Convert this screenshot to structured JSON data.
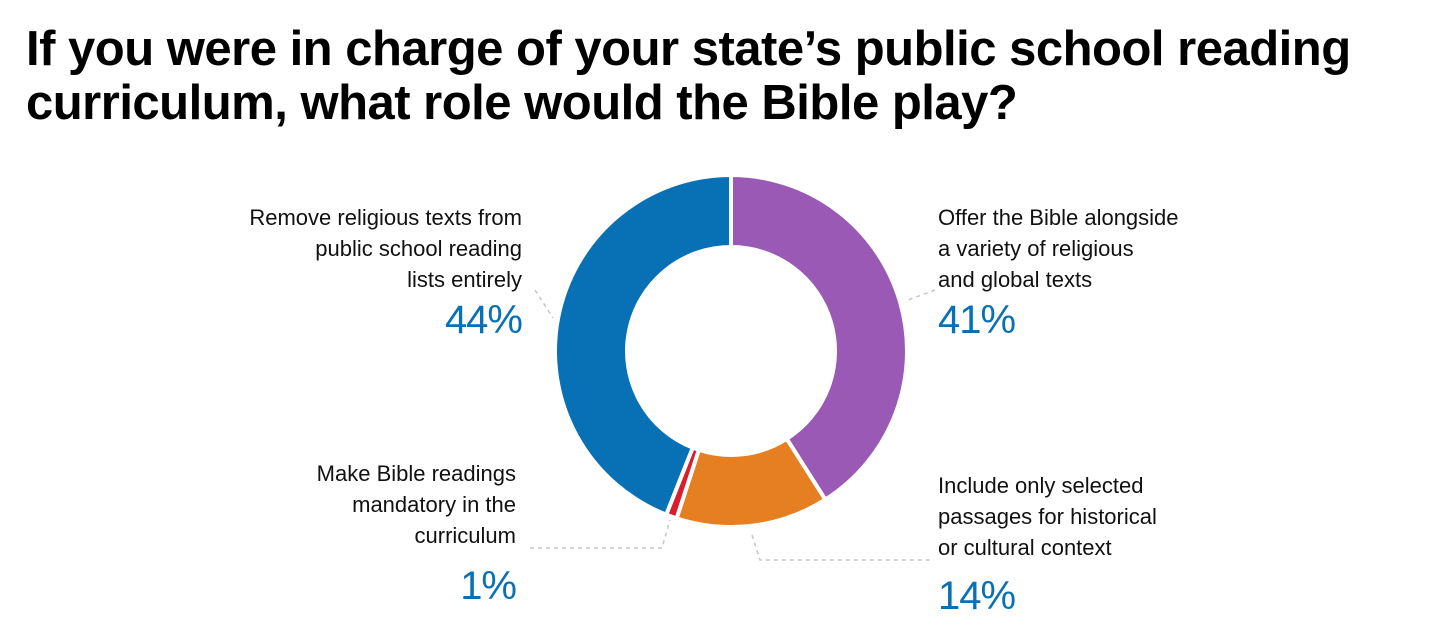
{
  "title": "If you were in charge of your state’s public school reading curriculum, what role would the Bible play?",
  "chart_data": {
    "type": "pie",
    "title": "If you were in charge of your state’s public school reading curriculum, what role would the Bible play?",
    "categories": [
      "Offer the Bible alongside a variety of religious and global texts",
      "Include only selected passages for historical or cultural context",
      "Make Bible readings mandatory in the curriculum",
      "Remove religious texts from public school reading lists entirely"
    ],
    "values": [
      41,
      14,
      1,
      44
    ],
    "value_labels": [
      "41%",
      "14%",
      "1%",
      "44%"
    ],
    "colors": [
      "#9b59b6",
      "#e67e22",
      "#d91f2e",
      "#0870b5"
    ],
    "label_color": "#0870b5"
  },
  "labels": {
    "offer": {
      "text": "Offer the Bible alongside\na variety of religious\nand global texts",
      "value": "41%"
    },
    "include": {
      "text": "Include only selected\npassages for historical\nor cultural context",
      "value": "14%"
    },
    "mandatory": {
      "text": "Make Bible readings\nmandatory in the\ncurriculum",
      "value": "1%"
    },
    "remove": {
      "text": "Remove religious texts from\npublic school reading\nlists entirely",
      "value": "44%"
    }
  }
}
